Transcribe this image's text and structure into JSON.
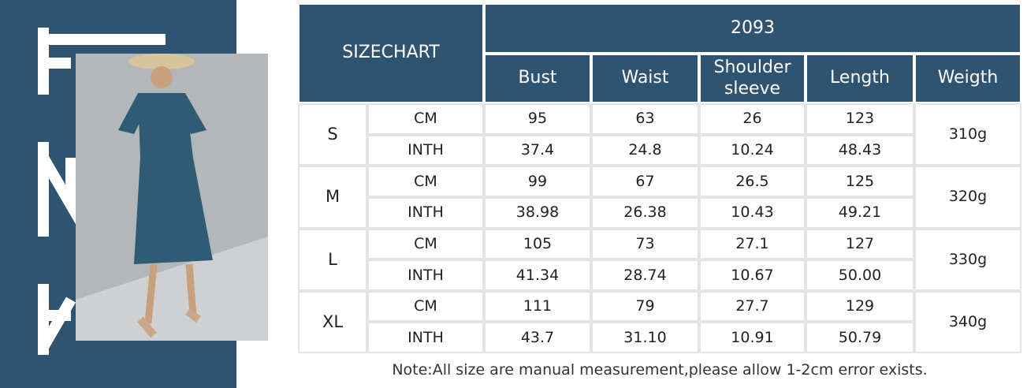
{
  "header": {
    "title": "SIZECHART",
    "code": "2093",
    "columns": [
      "Bust",
      "Waist",
      "Shoulder sleeve",
      "Length",
      "Weigth"
    ]
  },
  "sizes": [
    {
      "size": "S",
      "weight": "310g",
      "rows": [
        {
          "unit": "CM",
          "values": [
            "95",
            "63",
            "26",
            "123"
          ]
        },
        {
          "unit": "INTH",
          "values": [
            "37.4",
            "24.8",
            "10.24",
            "48.43"
          ]
        }
      ]
    },
    {
      "size": "M",
      "weight": "320g",
      "rows": [
        {
          "unit": "CM",
          "values": [
            "99",
            "67",
            "26.5",
            "125"
          ]
        },
        {
          "unit": "INTH",
          "values": [
            "38.98",
            "26.38",
            "10.43",
            "49.21"
          ]
        }
      ]
    },
    {
      "size": "L",
      "weight": "330g",
      "rows": [
        {
          "unit": "CM",
          "values": [
            "105",
            "73",
            "27.1",
            "127"
          ]
        },
        {
          "unit": "INTH",
          "values": [
            "41.34",
            "28.74",
            "10.67",
            "50.00"
          ]
        }
      ]
    },
    {
      "size": "XL",
      "weight": "340g",
      "rows": [
        {
          "unit": "CM",
          "values": [
            "111",
            "79",
            "27.7",
            "129"
          ]
        },
        {
          "unit": "INTH",
          "values": [
            "43.7",
            "31.10",
            "10.91",
            "50.79"
          ]
        }
      ]
    }
  ],
  "note": "Note:All size are manual measurement,please allow 1-2cm error exists."
}
